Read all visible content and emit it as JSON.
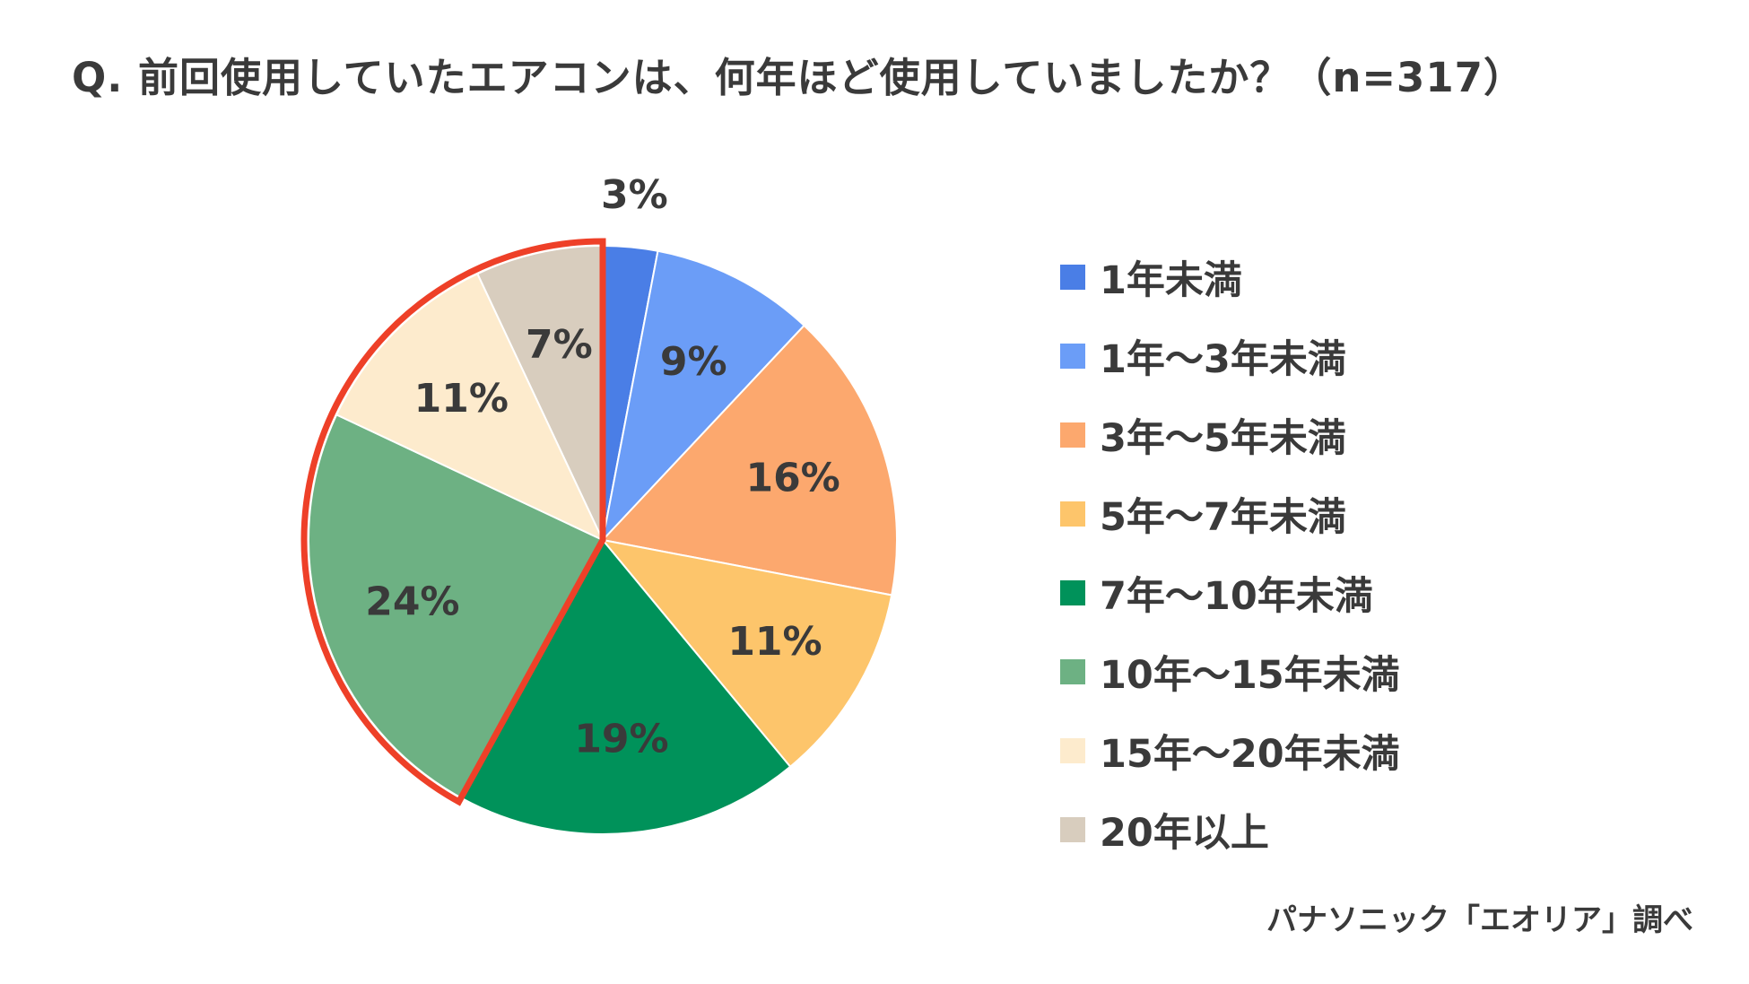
{
  "chart_data": {
    "type": "pie",
    "title": "Q. 前回使用していたエアコンは、何年ほど使用していましたか？（n=317）",
    "categories": [
      "1年未満",
      "1年～3年未満",
      "3年～5年未満",
      "5年～7年未満",
      "7年～10年未満",
      "10年～15年未満",
      "15年～20年未満",
      "20年以上"
    ],
    "values": [
      3,
      9,
      16,
      11,
      19,
      24,
      11,
      7
    ],
    "data_labels": [
      "3%",
      "9%",
      "16%",
      "11%",
      "19%",
      "24%",
      "11%",
      "7%"
    ],
    "colors": [
      "#4a7ee6",
      "#6b9df7",
      "#fca86e",
      "#fdc56b",
      "#00925a",
      "#6db183",
      "#fdebcd",
      "#d8cdbe"
    ],
    "highlight": {
      "slices": [
        "10年～15年未満",
        "15年～20年未満",
        "20年以上"
      ],
      "color": "#ee4028"
    },
    "legend_position": "right",
    "start_angle": "12 o'clock, clockwise"
  },
  "source_note": "パナソニック「エオリア」調べ"
}
